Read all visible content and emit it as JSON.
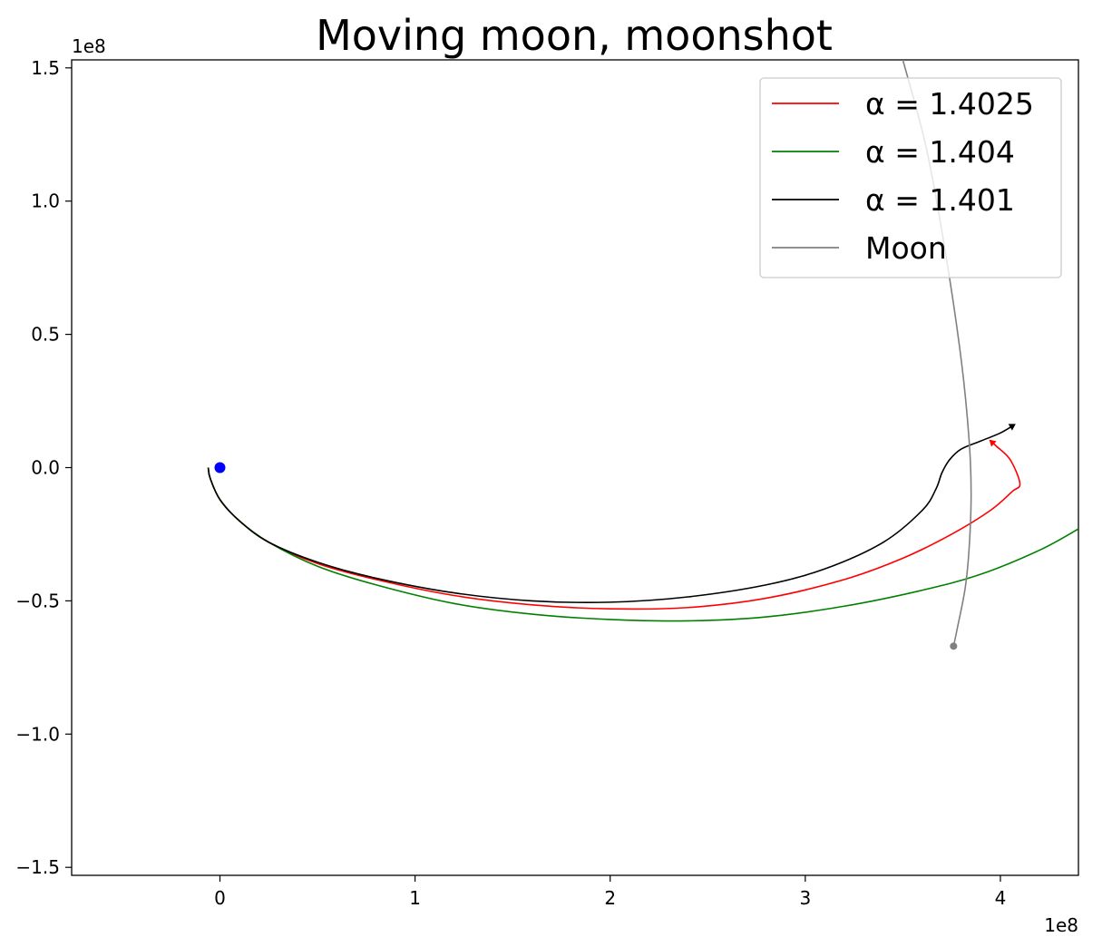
{
  "chart_data": {
    "type": "line",
    "title": "Moving moon, moonshot",
    "xlabel": "",
    "ylabel": "",
    "x_offset_label": "1e8",
    "y_offset_label": "1e8",
    "xlim": [
      -0.76,
      4.4
    ],
    "ylim": [
      -1.53,
      1.53
    ],
    "x_ticks": [
      {
        "value": 0,
        "label": "0"
      },
      {
        "value": 1,
        "label": "1"
      },
      {
        "value": 2,
        "label": "2"
      },
      {
        "value": 3,
        "label": "3"
      },
      {
        "value": 4,
        "label": "4"
      }
    ],
    "y_ticks": [
      {
        "value": 1.5,
        "label": "1.5"
      },
      {
        "value": 1.0,
        "label": "1.0"
      },
      {
        "value": 0.5,
        "label": "0.5"
      },
      {
        "value": 0.0,
        "label": "0.0"
      },
      {
        "value": -0.5,
        "label": "−0.5"
      },
      {
        "value": -1.0,
        "label": "−1.0"
      },
      {
        "value": -1.5,
        "label": "−1.5"
      }
    ],
    "grid": false,
    "legend_position": "top-right",
    "earth": {
      "x": 0,
      "y": 0,
      "color": "#0000ff"
    },
    "series": [
      {
        "name": "α = 1.4025",
        "color": "#ff0000",
        "end_marker": "triangle",
        "x": [
          -0.06,
          -0.05,
          0.0,
          0.1,
          0.25,
          0.5,
          0.8,
          1.2,
          1.6,
          2.0,
          2.4,
          2.8,
          3.2,
          3.5,
          3.75,
          3.95,
          4.06,
          4.1,
          4.05,
          3.98,
          3.95
        ],
        "y": [
          0.0,
          -0.04,
          -0.12,
          -0.2,
          -0.28,
          -0.36,
          -0.42,
          -0.48,
          -0.515,
          -0.53,
          -0.525,
          -0.49,
          -0.42,
          -0.34,
          -0.25,
          -0.16,
          -0.09,
          -0.06,
          0.03,
          0.08,
          0.1
        ]
      },
      {
        "name": "α = 1.404",
        "color": "#008000",
        "end_marker": "",
        "x": [
          -0.06,
          -0.05,
          0.0,
          0.1,
          0.25,
          0.5,
          0.8,
          1.2,
          1.6,
          2.0,
          2.4,
          2.8,
          3.2,
          3.6,
          3.9,
          4.2,
          4.4
        ],
        "y": [
          0.0,
          -0.04,
          -0.12,
          -0.2,
          -0.28,
          -0.37,
          -0.44,
          -0.51,
          -0.55,
          -0.57,
          -0.575,
          -0.56,
          -0.52,
          -0.46,
          -0.4,
          -0.31,
          -0.23
        ]
      },
      {
        "name": "α = 1.401",
        "color": "#000000",
        "end_marker": "triangle",
        "x": [
          -0.06,
          -0.05,
          0.0,
          0.1,
          0.25,
          0.5,
          0.8,
          1.2,
          1.6,
          2.0,
          2.4,
          2.8,
          3.1,
          3.4,
          3.6,
          3.67,
          3.7,
          3.74,
          3.8,
          3.9,
          4.0,
          4.07
        ],
        "y": [
          0.0,
          -0.04,
          -0.12,
          -0.2,
          -0.28,
          -0.355,
          -0.415,
          -0.47,
          -0.5,
          -0.505,
          -0.485,
          -0.44,
          -0.38,
          -0.28,
          -0.16,
          -0.08,
          -0.02,
          0.03,
          0.07,
          0.1,
          0.13,
          0.16
        ]
      },
      {
        "name": "Moon",
        "color": "#808080",
        "end_marker": "circle",
        "x": [
          3.5,
          3.62,
          3.72,
          3.8,
          3.84,
          3.85,
          3.84,
          3.82,
          3.78,
          3.76
        ],
        "y": [
          1.53,
          1.2,
          0.8,
          0.4,
          0.1,
          -0.1,
          -0.3,
          -0.45,
          -0.6,
          -0.67
        ]
      }
    ]
  }
}
